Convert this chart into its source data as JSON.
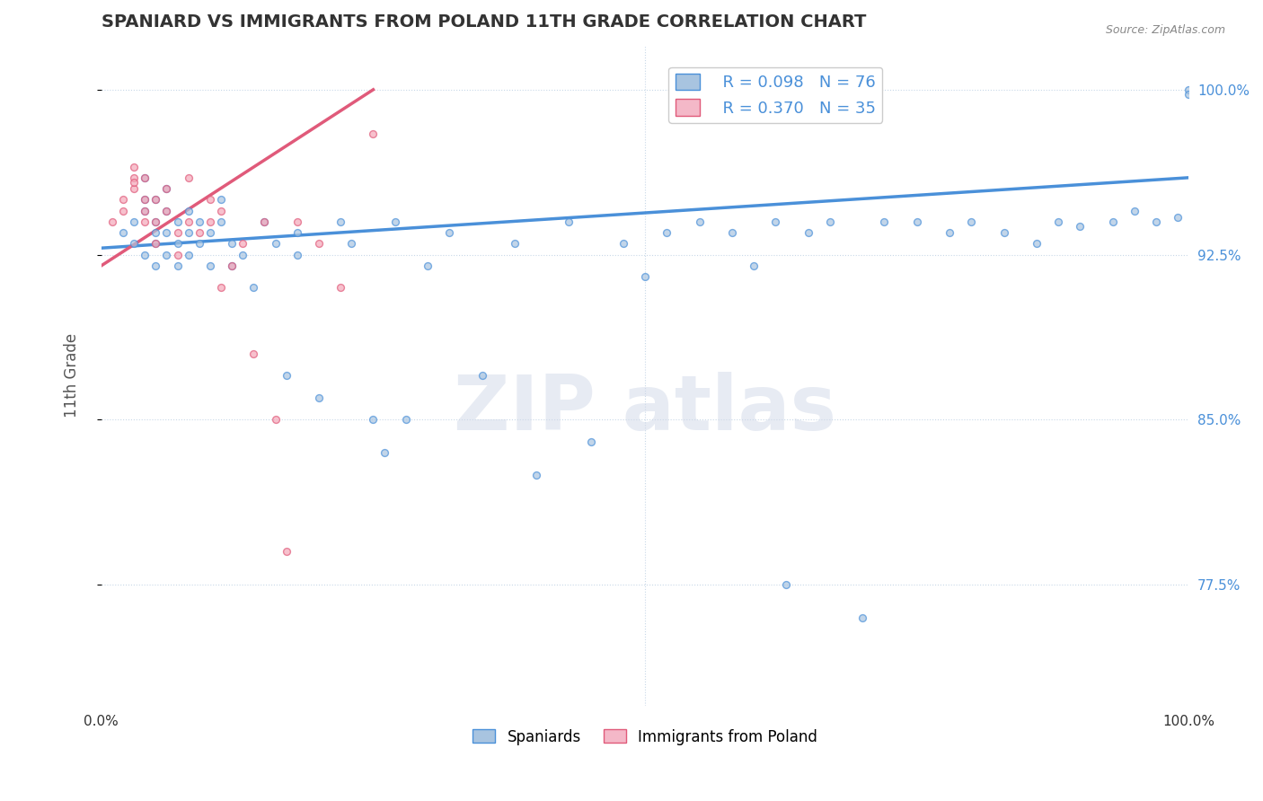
{
  "title": "SPANIARD VS IMMIGRANTS FROM POLAND 11TH GRADE CORRELATION CHART",
  "source_text": "Source: ZipAtlas.com",
  "xlabel": "",
  "ylabel": "11th Grade",
  "xlim": [
    0.0,
    1.0
  ],
  "ylim": [
    0.72,
    1.02
  ],
  "yticks": [
    0.775,
    0.85,
    0.925,
    1.0
  ],
  "ytick_labels": [
    "77.5%",
    "85.0%",
    "92.5%",
    "100.0%"
  ],
  "xticks": [
    0.0,
    0.5,
    1.0
  ],
  "xtick_labels": [
    "0.0%",
    "",
    "100.0%"
  ],
  "blue_R": 0.098,
  "blue_N": 76,
  "pink_R": 0.37,
  "pink_N": 35,
  "blue_color": "#a8c4e0",
  "pink_color": "#f4a7b9",
  "blue_line_color": "#4a90d9",
  "pink_line_color": "#e05a7a",
  "legend_blue_color": "#a8c4e0",
  "legend_pink_color": "#f4b8c8",
  "watermark_color": "#d0d8e8",
  "blue_scatter_x": [
    0.02,
    0.03,
    0.03,
    0.04,
    0.04,
    0.04,
    0.04,
    0.05,
    0.05,
    0.05,
    0.05,
    0.05,
    0.06,
    0.06,
    0.06,
    0.06,
    0.07,
    0.07,
    0.07,
    0.08,
    0.08,
    0.08,
    0.09,
    0.09,
    0.1,
    0.1,
    0.11,
    0.11,
    0.12,
    0.12,
    0.13,
    0.14,
    0.15,
    0.16,
    0.17,
    0.18,
    0.18,
    0.2,
    0.22,
    0.23,
    0.25,
    0.26,
    0.27,
    0.28,
    0.3,
    0.32,
    0.35,
    0.38,
    0.4,
    0.43,
    0.45,
    0.48,
    0.5,
    0.52,
    0.55,
    0.58,
    0.6,
    0.62,
    0.63,
    0.65,
    0.67,
    0.7,
    0.72,
    0.75,
    0.78,
    0.8,
    0.83,
    0.86,
    0.88,
    0.9,
    0.93,
    0.95,
    0.97,
    0.99,
    1.0,
    1.0
  ],
  "blue_scatter_y": [
    0.935,
    0.94,
    0.93,
    0.945,
    0.925,
    0.95,
    0.96,
    0.935,
    0.93,
    0.92,
    0.94,
    0.95,
    0.945,
    0.935,
    0.925,
    0.955,
    0.93,
    0.94,
    0.92,
    0.935,
    0.945,
    0.925,
    0.94,
    0.93,
    0.935,
    0.92,
    0.94,
    0.95,
    0.93,
    0.92,
    0.925,
    0.91,
    0.94,
    0.93,
    0.87,
    0.935,
    0.925,
    0.86,
    0.94,
    0.93,
    0.85,
    0.835,
    0.94,
    0.85,
    0.92,
    0.935,
    0.87,
    0.93,
    0.825,
    0.94,
    0.84,
    0.93,
    0.915,
    0.935,
    0.94,
    0.935,
    0.92,
    0.94,
    0.775,
    0.935,
    0.94,
    0.76,
    0.94,
    0.94,
    0.935,
    0.94,
    0.935,
    0.93,
    0.94,
    0.938,
    0.94,
    0.945,
    0.94,
    0.942,
    1.0,
    0.998
  ],
  "pink_scatter_x": [
    0.01,
    0.02,
    0.02,
    0.03,
    0.03,
    0.03,
    0.03,
    0.04,
    0.04,
    0.04,
    0.04,
    0.05,
    0.05,
    0.05,
    0.06,
    0.06,
    0.07,
    0.07,
    0.08,
    0.08,
    0.09,
    0.1,
    0.1,
    0.11,
    0.11,
    0.12,
    0.13,
    0.14,
    0.15,
    0.16,
    0.17,
    0.18,
    0.2,
    0.22,
    0.25
  ],
  "pink_scatter_y": [
    0.94,
    0.95,
    0.945,
    0.955,
    0.96,
    0.965,
    0.958,
    0.95,
    0.94,
    0.945,
    0.96,
    0.94,
    0.95,
    0.93,
    0.945,
    0.955,
    0.935,
    0.925,
    0.94,
    0.96,
    0.935,
    0.95,
    0.94,
    0.91,
    0.945,
    0.92,
    0.93,
    0.88,
    0.94,
    0.85,
    0.79,
    0.94,
    0.93,
    0.91,
    0.98
  ],
  "blue_line_x": [
    0.0,
    1.0
  ],
  "blue_line_y_start": 0.928,
  "blue_line_y_end": 0.96,
  "pink_line_x": [
    0.0,
    0.25
  ],
  "pink_line_y_start": 0.92,
  "pink_line_y_end": 1.0,
  "legend_labels": [
    "Spaniards",
    "Immigrants from Poland"
  ],
  "grid_color": "#c8d8e8",
  "title_color": "#333333",
  "axis_label_color": "#555555",
  "tick_color_right": "#4a90d9",
  "marker_size": 8,
  "marker_linewidth": 1.0
}
